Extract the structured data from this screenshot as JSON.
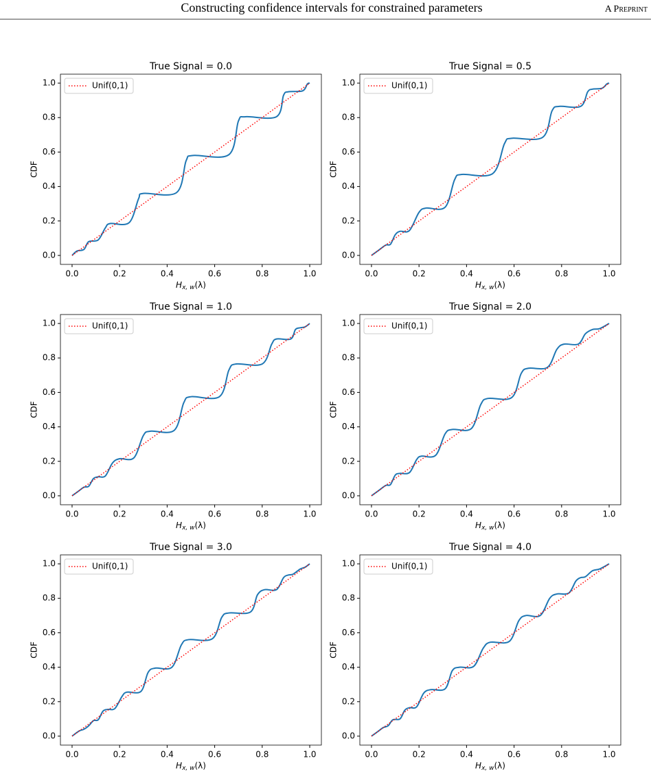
{
  "header": {
    "title": "Constructing confidence intervals for constrained parameters",
    "tag": "A Preprint"
  },
  "chart_data": [
    {
      "type": "line",
      "title": "True Signal = 0.0",
      "xlabel_parts": [
        "H",
        "x, w",
        "(λ)"
      ],
      "ylabel": "CDF",
      "legend": "upper left",
      "xlim": [
        -0.049,
        1.049
      ],
      "ylim": [
        -0.052,
        1.052
      ],
      "xticks": [
        {
          "value": 0,
          "label": "0.0"
        },
        0.2,
        0.4,
        0.6,
        0.8,
        {
          "value": 1,
          "label": "1.0"
        }
      ],
      "yticks": [
        {
          "value": 0,
          "label": "0.0"
        },
        0.2,
        0.4,
        0.6,
        0.8,
        {
          "value": 1,
          "label": "1.0"
        }
      ],
      "series": [
        {
          "name": "Unif(0,1)",
          "color": "#ff0000",
          "style": "dotted",
          "x": [
            0,
            1
          ],
          "values": [
            0,
            1
          ]
        },
        {
          "color": "#1f77b4",
          "style": "solid",
          "x": [
            0,
            0.02,
            0.05,
            0.07,
            0.11,
            0.14,
            0.16,
            0.24,
            0.28,
            0.3,
            0.44,
            0.48,
            0.51,
            0.66,
            0.7,
            0.73,
            0.86,
            0.89,
            0.91,
            0.97,
            0.99,
            1.0
          ],
          "values": [
            0,
            0.025,
            0.035,
            0.08,
            0.09,
            0.16,
            0.185,
            0.19,
            0.33,
            0.36,
            0.365,
            0.55,
            0.58,
            0.585,
            0.78,
            0.805,
            0.805,
            0.93,
            0.95,
            0.955,
            0.995,
            1.0
          ]
        }
      ]
    },
    {
      "type": "line",
      "title": "True Signal = 0.5",
      "xlabel_parts": [
        "H",
        "x, w",
        "(λ)"
      ],
      "ylabel": "CDF",
      "legend": "upper left",
      "xlim": [
        -0.049,
        1.049
      ],
      "ylim": [
        -0.052,
        1.052
      ],
      "xticks": [
        {
          "value": 0,
          "label": "0.0"
        },
        0.2,
        0.4,
        0.6,
        0.8,
        {
          "value": 1,
          "label": "1.0"
        }
      ],
      "yticks": [
        {
          "value": 0,
          "label": "0.0"
        },
        0.2,
        0.4,
        0.6,
        0.8,
        {
          "value": 1,
          "label": "1.0"
        }
      ],
      "series": [
        {
          "name": "Unif(0,1)",
          "color": "#ff0000",
          "style": "dotted",
          "x": [
            0,
            1
          ],
          "values": [
            0,
            1
          ]
        },
        {
          "color": "#1f77b4",
          "style": "solid",
          "x": [
            0,
            0.03,
            0.06,
            0.08,
            0.1,
            0.12,
            0.16,
            0.2,
            0.23,
            0.31,
            0.35,
            0.38,
            0.51,
            0.56,
            0.59,
            0.72,
            0.76,
            0.79,
            0.88,
            0.91,
            0.93,
            0.97,
            0.99,
            1.0
          ],
          "values": [
            0,
            0.03,
            0.06,
            0.065,
            0.12,
            0.14,
            0.145,
            0.25,
            0.275,
            0.28,
            0.44,
            0.47,
            0.475,
            0.65,
            0.68,
            0.685,
            0.84,
            0.865,
            0.865,
            0.95,
            0.965,
            0.97,
            0.995,
            1.0
          ]
        }
      ]
    },
    {
      "type": "line",
      "title": "True Signal = 1.0",
      "xlabel_parts": [
        "H",
        "x, w",
        "(λ)"
      ],
      "ylabel": "CDF",
      "legend": "upper left",
      "xlim": [
        -0.049,
        1.049
      ],
      "ylim": [
        -0.052,
        1.052
      ],
      "xticks": [
        {
          "value": 0,
          "label": "0.0"
        },
        0.2,
        0.4,
        0.6,
        0.8,
        {
          "value": 1,
          "label": "1.0"
        }
      ],
      "yticks": [
        {
          "value": 0,
          "label": "0.0"
        },
        0.2,
        0.4,
        0.6,
        0.8,
        {
          "value": 1,
          "label": "1.0"
        }
      ],
      "series": [
        {
          "name": "Unif(0,1)",
          "color": "#ff0000",
          "style": "dotted",
          "x": [
            0,
            1
          ],
          "values": [
            0,
            1
          ]
        },
        {
          "color": "#1f77b4",
          "style": "solid",
          "x": [
            0,
            0.03,
            0.05,
            0.07,
            0.09,
            0.11,
            0.14,
            0.17,
            0.2,
            0.26,
            0.3,
            0.33,
            0.43,
            0.47,
            0.5,
            0.62,
            0.66,
            0.69,
            0.8,
            0.84,
            0.86,
            0.92,
            0.94,
            0.96,
            0.98,
            1.0
          ],
          "values": [
            0,
            0.03,
            0.05,
            0.055,
            0.1,
            0.11,
            0.115,
            0.19,
            0.215,
            0.22,
            0.35,
            0.375,
            0.38,
            0.54,
            0.575,
            0.575,
            0.73,
            0.765,
            0.765,
            0.88,
            0.91,
            0.91,
            0.965,
            0.975,
            0.98,
            1.0
          ]
        }
      ]
    },
    {
      "type": "line",
      "title": "True Signal = 2.0",
      "xlabel_parts": [
        "H",
        "x, w",
        "(λ)"
      ],
      "ylabel": "CDF",
      "legend": "upper left",
      "xlim": [
        -0.049,
        1.049
      ],
      "ylim": [
        -0.052,
        1.052
      ],
      "xticks": [
        {
          "value": 0,
          "label": "0.0"
        },
        0.2,
        0.4,
        0.6,
        0.8,
        {
          "value": 1,
          "label": "1.0"
        }
      ],
      "yticks": [
        {
          "value": 0,
          "label": "0.0"
        },
        0.2,
        0.4,
        0.6,
        0.8,
        {
          "value": 1,
          "label": "1.0"
        }
      ],
      "series": [
        {
          "name": "Unif(0,1)",
          "color": "#ff0000",
          "style": "dotted",
          "x": [
            0,
            1
          ],
          "values": [
            0,
            1
          ]
        },
        {
          "color": "#1f77b4",
          "style": "solid",
          "x": [
            0,
            0.03,
            0.06,
            0.08,
            0.1,
            0.12,
            0.16,
            0.19,
            0.21,
            0.27,
            0.31,
            0.34,
            0.42,
            0.46,
            0.49,
            0.59,
            0.63,
            0.66,
            0.74,
            0.78,
            0.81,
            0.87,
            0.9,
            0.93,
            0.96,
            1.0
          ],
          "values": [
            0,
            0.03,
            0.06,
            0.065,
            0.12,
            0.13,
            0.135,
            0.21,
            0.23,
            0.235,
            0.36,
            0.385,
            0.39,
            0.53,
            0.565,
            0.57,
            0.71,
            0.74,
            0.745,
            0.85,
            0.88,
            0.88,
            0.94,
            0.965,
            0.97,
            1.0
          ]
        }
      ]
    },
    {
      "type": "line",
      "title": "True Signal = 3.0",
      "xlabel_parts": [
        "H",
        "x, w",
        "(λ)"
      ],
      "ylabel": "CDF",
      "legend": "upper left",
      "xlim": [
        -0.049,
        1.049
      ],
      "ylim": [
        -0.052,
        1.052
      ],
      "xticks": [
        {
          "value": 0,
          "label": "0.0"
        },
        0.2,
        0.4,
        0.6,
        0.8,
        {
          "value": 1,
          "label": "1.0"
        }
      ],
      "yticks": [
        {
          "value": 0,
          "label": "0.0"
        },
        0.2,
        0.4,
        0.6,
        0.8,
        {
          "value": 1,
          "label": "1.0"
        }
      ],
      "series": [
        {
          "name": "Unif(0,1)",
          "color": "#ff0000",
          "style": "dotted",
          "x": [
            0,
            1
          ],
          "values": [
            0,
            1
          ]
        },
        {
          "color": "#1f77b4",
          "style": "solid",
          "x": [
            0,
            0.03,
            0.05,
            0.07,
            0.09,
            0.11,
            0.13,
            0.15,
            0.18,
            0.21,
            0.23,
            0.29,
            0.32,
            0.35,
            0.42,
            0.46,
            0.49,
            0.59,
            0.63,
            0.66,
            0.75,
            0.78,
            0.81,
            0.86,
            0.89,
            0.91,
            0.93,
            0.96,
            0.98,
            1.0
          ],
          "values": [
            0,
            0.03,
            0.04,
            0.06,
            0.09,
            0.095,
            0.145,
            0.155,
            0.16,
            0.23,
            0.255,
            0.26,
            0.37,
            0.395,
            0.4,
            0.53,
            0.56,
            0.565,
            0.69,
            0.715,
            0.72,
            0.82,
            0.85,
            0.85,
            0.92,
            0.935,
            0.94,
            0.97,
            0.98,
            1.0
          ]
        }
      ]
    },
    {
      "type": "line",
      "title": "True Signal = 4.0",
      "xlabel_parts": [
        "H",
        "x, w",
        "(λ)"
      ],
      "ylabel": "CDF",
      "legend": "upper left",
      "xlim": [
        -0.049,
        1.049
      ],
      "ylim": [
        -0.052,
        1.052
      ],
      "xticks": [
        {
          "value": 0,
          "label": "0.0"
        },
        0.2,
        0.4,
        0.6,
        0.8,
        {
          "value": 1,
          "label": "1.0"
        }
      ],
      "yticks": [
        {
          "value": 0,
          "label": "0.0"
        },
        0.2,
        0.4,
        0.6,
        0.8,
        {
          "value": 1,
          "label": "1.0"
        }
      ],
      "series": [
        {
          "name": "Unif(0,1)",
          "color": "#ff0000",
          "style": "dotted",
          "x": [
            0,
            1
          ],
          "values": [
            0,
            1
          ]
        },
        {
          "color": "#1f77b4",
          "style": "solid",
          "x": [
            0,
            0.03,
            0.05,
            0.07,
            0.09,
            0.12,
            0.14,
            0.16,
            0.19,
            0.22,
            0.25,
            0.31,
            0.34,
            0.37,
            0.43,
            0.47,
            0.5,
            0.58,
            0.62,
            0.65,
            0.71,
            0.75,
            0.78,
            0.83,
            0.86,
            0.88,
            0.9,
            0.93,
            0.96,
            1.0
          ],
          "values": [
            0,
            0.03,
            0.05,
            0.06,
            0.095,
            0.1,
            0.15,
            0.165,
            0.17,
            0.25,
            0.27,
            0.275,
            0.38,
            0.4,
            0.405,
            0.51,
            0.545,
            0.55,
            0.67,
            0.7,
            0.7,
            0.8,
            0.825,
            0.83,
            0.9,
            0.92,
            0.925,
            0.96,
            0.97,
            1.0
          ]
        }
      ]
    }
  ]
}
